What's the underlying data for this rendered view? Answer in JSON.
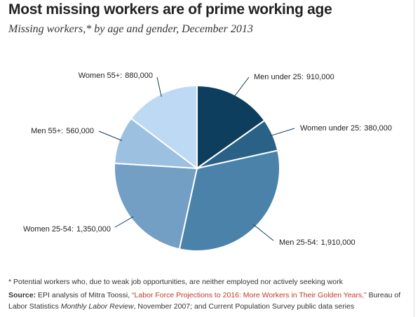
{
  "chart_data": {
    "type": "pie",
    "title": "Most missing workers are of prime working age",
    "subtitle": "Missing workers,* by age and gender, December 2013",
    "categories": [
      "Men under 25:",
      "Women under 25:",
      "Men 25-54:",
      "Women 25-54:",
      "Men 55+:",
      "Women 55+:"
    ],
    "values": [
      910000,
      380000,
      1910000,
      1350000,
      560000,
      880000
    ],
    "value_labels": [
      "910,000",
      "380,000",
      "1,910,000",
      "1,350,000",
      "560,000",
      "880,000"
    ],
    "colors": [
      "#0e3e5e",
      "#2a6287",
      "#4a82a9",
      "#739fc4",
      "#9cc0e0",
      "#bed9f3"
    ],
    "footnote": "* Potential workers who, due to weak job opportunities, are neither employed nor actively seeking work",
    "source": [
      "Source:",
      " EPI analysis of Mitra Toossi, ",
      "“Labor Force Projections to 2016: More Workers in Their Golden Years,”",
      " Bureau of Labor Statistics ",
      "Monthly Labor Review",
      ", November 2007; and Current Population Survey public data series"
    ]
  }
}
